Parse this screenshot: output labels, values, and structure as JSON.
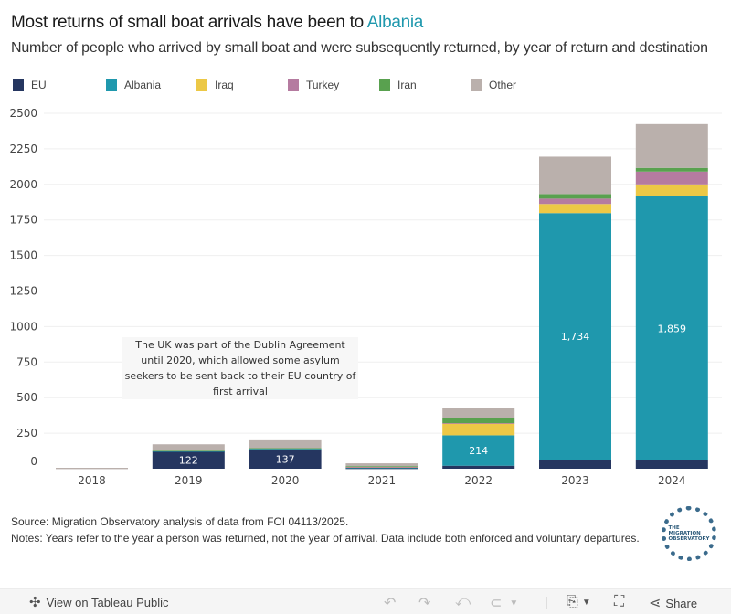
{
  "header": {
    "title_prefix": "Most returns of small boat arrivals have been to ",
    "title_accent": "Albania",
    "subtitle": "Number of people who arrived by small boat and were subsequently returned, by year of return and destination"
  },
  "colors": {
    "accent": "#1f98ad",
    "EU": "#253660",
    "Albania": "#1f98ad",
    "Iraq": "#ecc846",
    "Turkey": "#b57ba0",
    "Iran": "#59a14f",
    "Other": "#bab0ac"
  },
  "chart_data": {
    "type": "bar",
    "stacked": true,
    "title": "Most returns of small boat arrivals have been to Albania",
    "subtitle": "Number of people who arrived by small boat and were subsequently returned, by year of return and destination",
    "xlabel": "",
    "ylabel": "",
    "ylim": [
      0,
      2500
    ],
    "yticks": [
      0,
      250,
      500,
      750,
      1000,
      1250,
      1500,
      1750,
      2000,
      2250,
      2500
    ],
    "grid": true,
    "legend_position": "top-left",
    "categories": [
      "2018",
      "2019",
      "2020",
      "2021",
      "2022",
      "2023",
      "2024"
    ],
    "series": [
      {
        "name": "EU",
        "values": [
          0,
          122,
          137,
          3,
          21,
          64,
          58
        ],
        "labels": [
          null,
          "122",
          "137",
          null,
          null,
          null,
          null
        ]
      },
      {
        "name": "Albania",
        "values": [
          0,
          2,
          4,
          8,
          214,
          1734,
          1859
        ],
        "labels": [
          null,
          null,
          null,
          null,
          "214",
          "1,734",
          "1,859"
        ]
      },
      {
        "name": "Iraq",
        "values": [
          0,
          0,
          0,
          1,
          83,
          64,
          83
        ],
        "labels": [
          null,
          null,
          null,
          null,
          null,
          null,
          null
        ]
      },
      {
        "name": "Turkey",
        "values": [
          0,
          0,
          0,
          1,
          3,
          38,
          90
        ],
        "labels": [
          null,
          null,
          null,
          null,
          null,
          null,
          null
        ]
      },
      {
        "name": "Iran",
        "values": [
          0,
          3,
          4,
          5,
          37,
          32,
          26
        ],
        "labels": [
          null,
          null,
          null,
          null,
          null,
          null,
          null
        ]
      },
      {
        "name": "Other",
        "values": [
          3,
          45,
          55,
          20,
          69,
          263,
          308
        ],
        "labels": [
          null,
          null,
          null,
          null,
          null,
          null,
          null
        ]
      }
    ],
    "annotation": "The UK was part of the Dublin Agreement until 2020, which allowed some asylum seekers to be sent back to their EU country of first arrival"
  },
  "footer": {
    "source": "Source: Migration Observatory analysis of data from FOI 04113/2025.",
    "notes": "Notes: Years refer to the year a person was returned, not the year of arrival. Data include both enforced and voluntary departures.",
    "logo_text": [
      "THE",
      "MIGRATION",
      "OBSERVATORY"
    ]
  },
  "toolbar": {
    "view_on_tableau": "View on Tableau Public",
    "share": "Share",
    "icons": [
      "tableau-logo-icon",
      "undo-icon",
      "redo-icon",
      "revert-icon",
      "pause-icon",
      "download-icon",
      "fullscreen-icon",
      "share-icon"
    ]
  }
}
